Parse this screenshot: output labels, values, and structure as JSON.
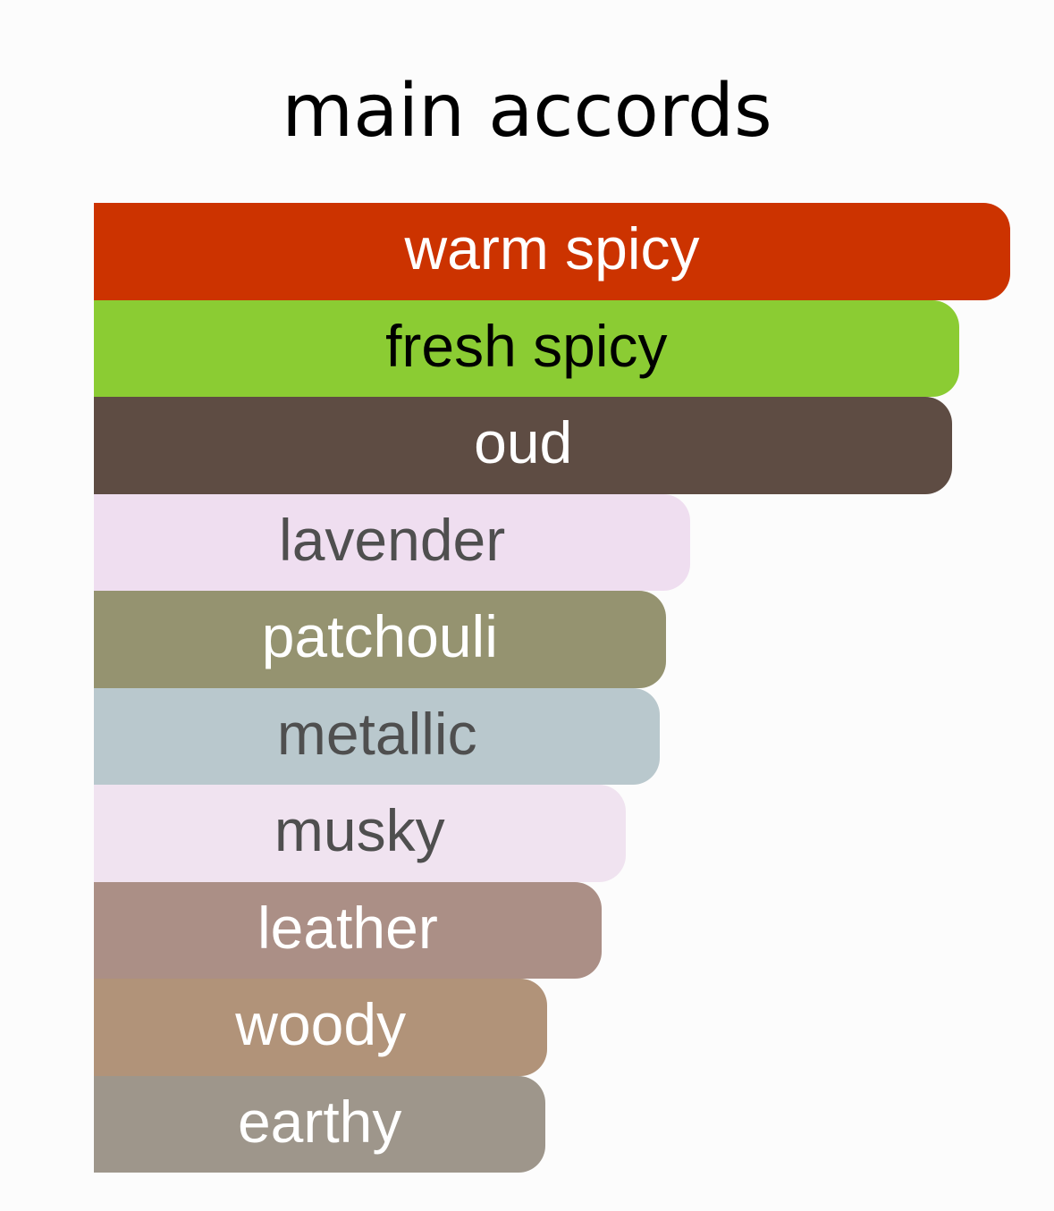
{
  "chart_data": {
    "type": "bar",
    "orientation": "horizontal",
    "title": "main accords",
    "unit": "percent of strongest accord",
    "categories": [
      "warm spicy",
      "fresh spicy",
      "oud",
      "lavender",
      "patchouli",
      "metallic",
      "musky",
      "leather",
      "woody",
      "earthy"
    ],
    "values": [
      100,
      94.4,
      93.7,
      65.1,
      62.4,
      61.8,
      58.0,
      55.4,
      49.5,
      49.3
    ],
    "colors": [
      "#cc3300",
      "#8bcc33",
      "#5e4c43",
      "#efdef0",
      "#959370",
      "#b9c8cd",
      "#f0e3f0",
      "#ab8f86",
      "#b19379",
      "#9e968b"
    ],
    "text_colors": [
      "#ffffff",
      "#000000",
      "#ffffff",
      "#4f4f4f",
      "#ffffff",
      "#4f4f4f",
      "#4f4f4f",
      "#ffffff",
      "#ffffff",
      "#ffffff"
    ],
    "xlim": [
      0,
      100
    ],
    "grid": false,
    "legend": "none"
  }
}
